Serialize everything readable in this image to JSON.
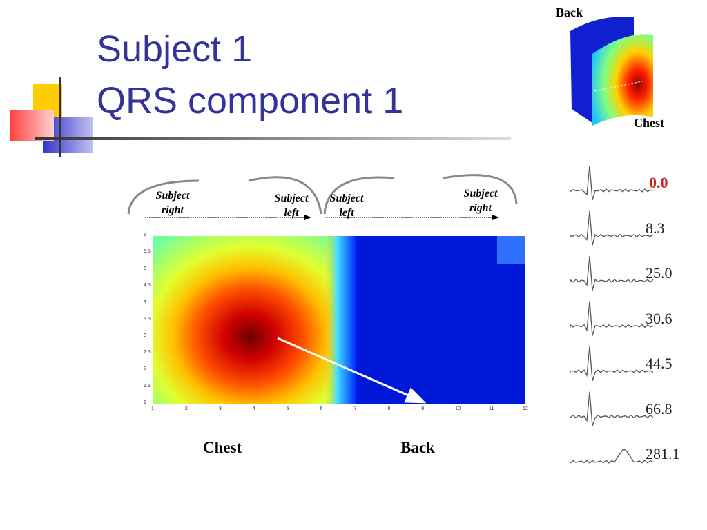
{
  "title": {
    "line1": "Subject 1",
    "line2": "QRS component 1"
  },
  "torso_figure": {
    "top_label": "Back",
    "bottom_label": "Chest"
  },
  "arc_labels": [
    "Subject right",
    "Subject left",
    "Subject left",
    "Subject right"
  ],
  "heatmap": {
    "xticks": [
      "1",
      "2",
      "3",
      "4",
      "5",
      "6",
      "7",
      "8",
      "9",
      "10",
      "11",
      "12"
    ],
    "yticks": [
      "1",
      "1.5",
      "2",
      "2.5",
      "3",
      "3.5",
      "4",
      "4.5",
      "5",
      "5.5",
      "6"
    ]
  },
  "bottom_labels": [
    "Chest",
    "Back"
  ],
  "traces": [
    "0.0",
    "8.3",
    "25.0",
    "30.6",
    "44.5",
    "66.8",
    "281.1"
  ]
}
